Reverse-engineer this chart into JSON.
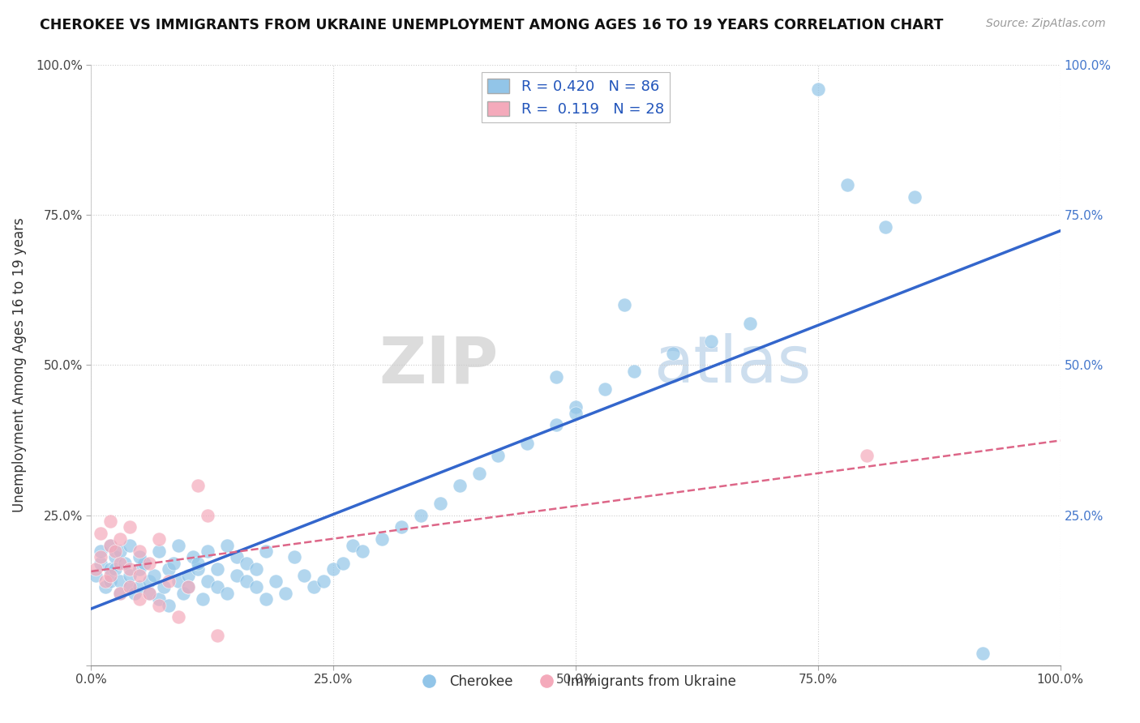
{
  "title": "CHEROKEE VS IMMIGRANTS FROM UKRAINE UNEMPLOYMENT AMONG AGES 16 TO 19 YEARS CORRELATION CHART",
  "source": "Source: ZipAtlas.com",
  "ylabel": "Unemployment Among Ages 16 to 19 years",
  "xlim": [
    0.0,
    1.0
  ],
  "ylim": [
    0.0,
    1.0
  ],
  "xtick_labels": [
    "0.0%",
    "",
    "25.0%",
    "",
    "50.0%",
    "",
    "75.0%",
    "",
    "100.0%"
  ],
  "xtick_vals": [
    0.0,
    0.125,
    0.25,
    0.375,
    0.5,
    0.625,
    0.75,
    0.875,
    1.0
  ],
  "ytick_labels_left": [
    "",
    "25.0%",
    "50.0%",
    "75.0%",
    "100.0%"
  ],
  "ytick_labels_right": [
    "",
    "25.0%",
    "50.0%",
    "75.0%",
    "100.0%"
  ],
  "ytick_vals": [
    0.0,
    0.25,
    0.5,
    0.75,
    1.0
  ],
  "cherokee_R": 0.42,
  "cherokee_N": 86,
  "ukraine_R": 0.119,
  "ukraine_N": 28,
  "cherokee_color": "#92C5E8",
  "ukraine_color": "#F4AABB",
  "trend_cherokee_color": "#3366CC",
  "trend_ukraine_color": "#DD6688",
  "watermark_color": "#E0E8F0",
  "legend_box_color": "#DDDDDD",
  "cherokee_x": [
    0.005,
    0.01,
    0.015,
    0.02,
    0.01,
    0.02,
    0.025,
    0.03,
    0.02,
    0.025,
    0.03,
    0.035,
    0.04,
    0.03,
    0.04,
    0.045,
    0.05,
    0.04,
    0.05,
    0.055,
    0.06,
    0.05,
    0.06,
    0.07,
    0.065,
    0.075,
    0.08,
    0.07,
    0.08,
    0.09,
    0.085,
    0.095,
    0.1,
    0.09,
    0.1,
    0.11,
    0.105,
    0.115,
    0.12,
    0.11,
    0.13,
    0.12,
    0.14,
    0.13,
    0.15,
    0.14,
    0.16,
    0.15,
    0.17,
    0.16,
    0.18,
    0.17,
    0.19,
    0.18,
    0.2,
    0.22,
    0.21,
    0.23,
    0.25,
    0.24,
    0.27,
    0.26,
    0.28,
    0.3,
    0.32,
    0.34,
    0.36,
    0.38,
    0.4,
    0.42,
    0.45,
    0.48,
    0.5,
    0.53,
    0.56,
    0.6,
    0.64,
    0.68,
    0.5,
    0.75,
    0.78,
    0.82,
    0.55,
    0.85,
    0.92,
    0.48
  ],
  "cherokee_y": [
    0.15,
    0.17,
    0.13,
    0.16,
    0.19,
    0.14,
    0.18,
    0.12,
    0.2,
    0.16,
    0.14,
    0.17,
    0.13,
    0.19,
    0.15,
    0.12,
    0.16,
    0.2,
    0.13,
    0.17,
    0.14,
    0.18,
    0.12,
    0.11,
    0.15,
    0.13,
    0.16,
    0.19,
    0.1,
    0.14,
    0.17,
    0.12,
    0.15,
    0.2,
    0.13,
    0.16,
    0.18,
    0.11,
    0.14,
    0.17,
    0.13,
    0.19,
    0.12,
    0.16,
    0.15,
    0.2,
    0.14,
    0.18,
    0.13,
    0.17,
    0.11,
    0.16,
    0.14,
    0.19,
    0.12,
    0.15,
    0.18,
    0.13,
    0.16,
    0.14,
    0.2,
    0.17,
    0.19,
    0.21,
    0.23,
    0.25,
    0.27,
    0.3,
    0.32,
    0.35,
    0.37,
    0.4,
    0.43,
    0.46,
    0.49,
    0.52,
    0.54,
    0.57,
    0.42,
    0.96,
    0.8,
    0.73,
    0.6,
    0.78,
    0.02,
    0.48
  ],
  "ukraine_x": [
    0.005,
    0.01,
    0.015,
    0.02,
    0.01,
    0.02,
    0.025,
    0.03,
    0.02,
    0.03,
    0.04,
    0.03,
    0.04,
    0.05,
    0.04,
    0.05,
    0.06,
    0.05,
    0.07,
    0.06,
    0.08,
    0.07,
    0.09,
    0.1,
    0.11,
    0.12,
    0.13,
    0.8
  ],
  "ukraine_y": [
    0.16,
    0.18,
    0.14,
    0.2,
    0.22,
    0.15,
    0.19,
    0.12,
    0.24,
    0.17,
    0.13,
    0.21,
    0.16,
    0.11,
    0.23,
    0.15,
    0.12,
    0.19,
    0.1,
    0.17,
    0.14,
    0.21,
    0.08,
    0.13,
    0.3,
    0.25,
    0.05,
    0.35
  ]
}
